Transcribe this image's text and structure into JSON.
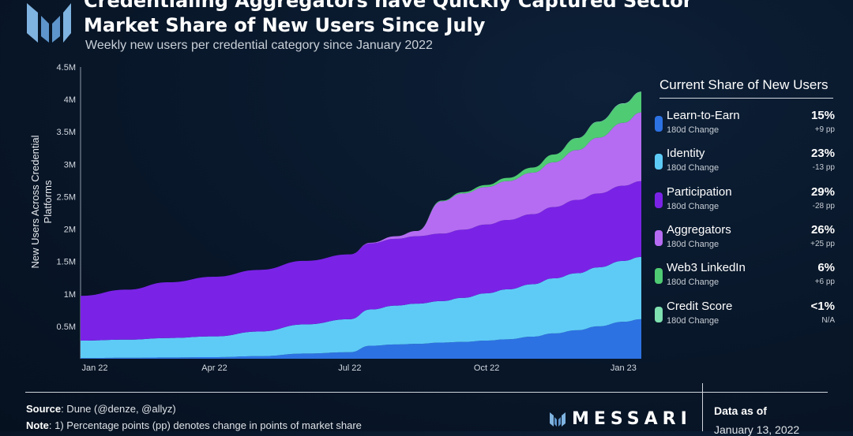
{
  "header": {
    "title_line1": "Credentialing Aggregators have Quickly Captured Sector",
    "title_line2": "Market Share of New Users Since July",
    "subtitle": "Weekly new users per credential category since January 2022"
  },
  "legend": {
    "title": "Current Share of New Users",
    "items": [
      {
        "name": "Learn-to-Earn",
        "sub": "180d Change",
        "share": "15%",
        "change": "+9 pp",
        "color": "#2d72e3"
      },
      {
        "name": "Identity",
        "sub": "180d Change",
        "share": "23%",
        "change": "-13 pp",
        "color": "#5ecbf7"
      },
      {
        "name": "Participation",
        "sub": "180d Change",
        "share": "29%",
        "change": "-28 pp",
        "color": "#7a23e6"
      },
      {
        "name": "Aggregators",
        "sub": "180d Change",
        "share": "26%",
        "change": "+25 pp",
        "color": "#b56cf2"
      },
      {
        "name": "Web3 LinkedIn",
        "sub": "180d Change",
        "share": "6%",
        "change": "+6 pp",
        "color": "#4fcb74"
      },
      {
        "name": "Credit Score",
        "sub": "180d Change",
        "share": "<1%",
        "change": "N/A",
        "color": "#7fe0b0"
      }
    ]
  },
  "footer": {
    "source_label": "Source",
    "source_text": ": Dune (@denze, @allyz)",
    "note_label": "Note",
    "note_text": ": 1) Percentage points (pp) denotes change in points of market share",
    "brand": "MESSARI",
    "data_as_of_label": "Data as of",
    "data_as_of_date": "January 13, 2022"
  },
  "chart_data": {
    "type": "area",
    "stacked": true,
    "ylabel": "New Users Across Credential Platforms",
    "ylim": [
      0,
      4500000
    ],
    "yticks": [
      "0.5M",
      "1M",
      "1.5M",
      "2M",
      "2.5M",
      "3M",
      "3.5M",
      "4M",
      "4.5M"
    ],
    "ytick_values": [
      500000,
      1000000,
      1500000,
      2000000,
      2500000,
      3000000,
      3500000,
      4000000,
      4500000
    ],
    "xticks": [
      "Jan 22",
      "Apr 22",
      "Jul 22",
      "Oct 22",
      "Jan 23"
    ],
    "x": [
      "2022-01-01",
      "2022-02-01",
      "2022-03-01",
      "2022-04-01",
      "2022-05-01",
      "2022-06-01",
      "2022-07-01",
      "2022-07-15",
      "2022-08-01",
      "2022-08-15",
      "2022-09-01",
      "2022-09-15",
      "2022-10-01",
      "2022-10-15",
      "2022-11-01",
      "2022-11-15",
      "2022-12-01",
      "2022-12-15",
      "2023-01-01",
      "2023-01-13"
    ],
    "grid": false,
    "legend": "right",
    "series": [
      {
        "name": "Learn-to-Earn",
        "color": "#2d72e3",
        "values": [
          10000,
          15000,
          20000,
          25000,
          40000,
          80000,
          100000,
          200000,
          220000,
          230000,
          250000,
          260000,
          280000,
          300000,
          340000,
          390000,
          440000,
          500000,
          570000,
          610000
        ]
      },
      {
        "name": "Identity",
        "color": "#5ecbf7",
        "values": [
          270000,
          280000,
          300000,
          320000,
          380000,
          450000,
          510000,
          560000,
          600000,
          620000,
          640000,
          680000,
          730000,
          770000,
          810000,
          850000,
          880000,
          910000,
          940000,
          960000
        ]
      },
      {
        "name": "Participation",
        "color": "#7a23e6",
        "values": [
          690000,
          770000,
          860000,
          920000,
          950000,
          980000,
          1000000,
          1020000,
          1030000,
          1040000,
          1040000,
          1050000,
          1060000,
          1070000,
          1080000,
          1100000,
          1130000,
          1140000,
          1160000,
          1170000
        ]
      },
      {
        "name": "Aggregators",
        "color": "#b56cf2",
        "values": [
          0,
          0,
          0,
          0,
          0,
          0,
          0,
          10000,
          40000,
          80000,
          500000,
          560000,
          580000,
          600000,
          640000,
          690000,
          770000,
          860000,
          970000,
          1060000
        ]
      },
      {
        "name": "Web3 LinkedIn",
        "color": "#4fcb74",
        "values": [
          0,
          0,
          0,
          0,
          0,
          0,
          0,
          0,
          0,
          0,
          10000,
          20000,
          30000,
          50000,
          80000,
          120000,
          180000,
          240000,
          290000,
          310000
        ]
      },
      {
        "name": "Credit Score",
        "color": "#7fe0b0",
        "values": [
          0,
          0,
          0,
          0,
          0,
          0,
          0,
          0,
          0,
          0,
          0,
          0,
          0,
          0,
          0,
          0,
          5000,
          8000,
          10000,
          10000
        ]
      }
    ]
  }
}
